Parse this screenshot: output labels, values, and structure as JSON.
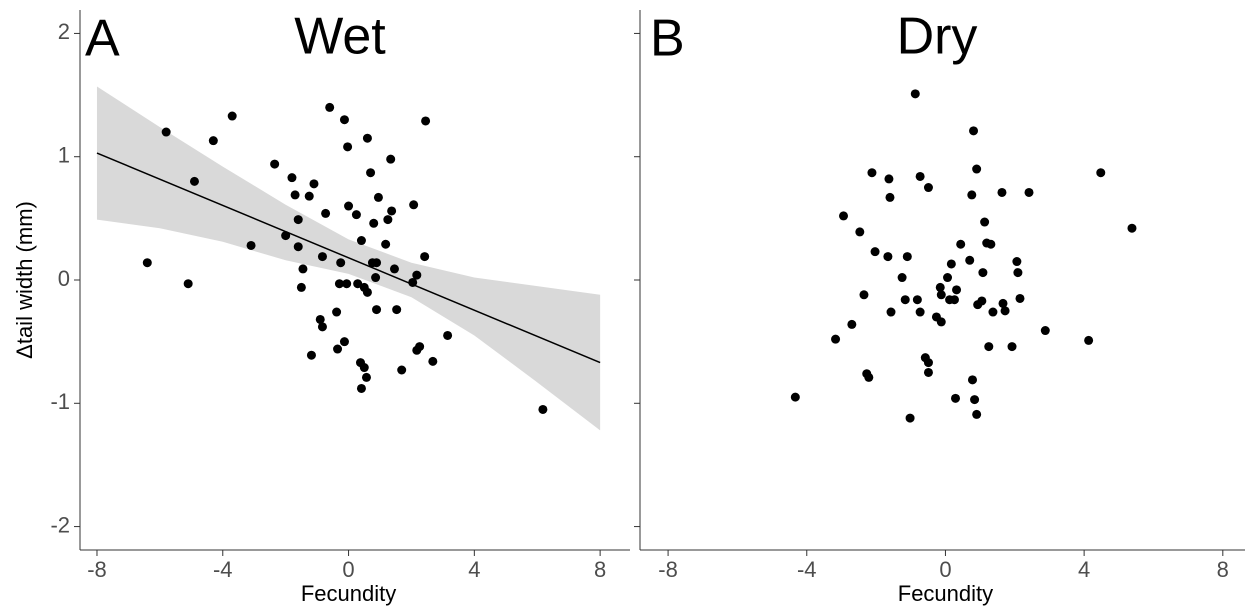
{
  "chart_data": [
    {
      "type": "scatter",
      "panel_label": "A",
      "title": "Wet",
      "x_label": "Fecundity",
      "y_label": "Δtail width (mm)",
      "xlim": [
        -8.54,
        8.95
      ],
      "ylim": [
        -2.19,
        2.19
      ],
      "xticks": [
        -8,
        -4,
        0,
        4,
        8
      ],
      "yticks": [
        -2,
        -1,
        0,
        1,
        2
      ],
      "grid": false,
      "color": "#000000",
      "x": [
        -5.8,
        -4.3,
        -3.7,
        -4.9,
        -6.4,
        -5.1,
        -3.1,
        -2.35,
        -1.8,
        -1.7,
        -1.6,
        -1.25,
        -1.1,
        -2.0,
        -1.6,
        -1.45,
        -1.5,
        -0.73,
        -0.6,
        -0.13,
        -0.03,
        0.6,
        0,
        0.25,
        1.34,
        2.45,
        0.95,
        0.8,
        1.37,
        1.25,
        1.18,
        2.07,
        0.41,
        0.7,
        -0.83,
        -0.25,
        -0.29,
        -0.06,
        0.29,
        0.5,
        0.6,
        0.89,
        0.76,
        0.86,
        1.46,
        2.42,
        2.17,
        2.04,
        0.89,
        1.53,
        -0.9,
        -0.83,
        -0.38,
        -0.13,
        -0.35,
        -1.18,
        0.38,
        0.5,
        0.57,
        0.41,
        1.69,
        2.17,
        2.26,
        2.68,
        3.15,
        6.18
      ],
      "values": [
        1.2,
        1.13,
        1.33,
        0.8,
        0.14,
        -0.03,
        0.28,
        0.94,
        0.83,
        0.69,
        0.49,
        0.68,
        0.78,
        0.36,
        0.27,
        0.09,
        -0.06,
        0.54,
        1.4,
        1.3,
        1.08,
        1.15,
        0.6,
        0.53,
        0.98,
        1.29,
        0.67,
        0.46,
        0.56,
        0.49,
        0.29,
        0.61,
        0.32,
        0.87,
        0.19,
        0.14,
        -0.03,
        -0.03,
        -0.03,
        -0.06,
        -0.1,
        0.14,
        0.14,
        0.02,
        0.09,
        0.19,
        0.04,
        -0.02,
        -0.24,
        -0.24,
        -0.32,
        -0.38,
        -0.26,
        -0.5,
        -0.56,
        -0.61,
        -0.67,
        -0.71,
        -0.79,
        -0.88,
        -0.73,
        -0.57,
        -0.54,
        -0.66,
        -0.45,
        -1.05
      ],
      "fit": {
        "color": "#000000",
        "x": [
          -8,
          8
        ],
        "values": [
          1.03,
          -0.67
        ]
      },
      "ci": {
        "color": "#d9d9d9",
        "x": [
          -8,
          -6,
          -4,
          -2,
          0,
          2,
          4,
          6,
          8
        ],
        "upper": [
          1.57,
          1.24,
          0.92,
          0.61,
          0.33,
          0.14,
          0.02,
          -0.05,
          -0.12
        ],
        "lower": [
          0.49,
          0.42,
          0.31,
          0.16,
          0.05,
          -0.14,
          -0.45,
          -0.83,
          -1.22
        ]
      }
    },
    {
      "type": "scatter",
      "panel_label": "B",
      "title": "Dry",
      "x_label": "Fecundity",
      "xlim": [
        -8.81,
        8.64
      ],
      "ylim": [
        -2.19,
        2.19
      ],
      "xticks": [
        -8,
        -4,
        0,
        4,
        8
      ],
      "grid": false,
      "color": "#000000",
      "x": [
        -0.87,
        0.81,
        0.9,
        -2.12,
        -1.63,
        -0.73,
        -0.49,
        -1.6,
        0.76,
        1.63,
        2.41,
        4.48,
        5.38,
        -2.94,
        -2.47,
        -2.03,
        -1.66,
        -1.1,
        -1.25,
        0.44,
        1.13,
        1.19,
        1.31,
        0.7,
        0.17,
        0.06,
        -0.15,
        0.32,
        0.12,
        0.26,
        -0.12,
        1.08,
        2.06,
        2.09,
        2.15,
        -2.35,
        -1.16,
        -0.81,
        -1.57,
        -0.73,
        -0.26,
        -0.12,
        1.05,
        0.93,
        1.37,
        1.72,
        1.66,
        -2.7,
        -3.17,
        1.25,
        1.92,
        2.88,
        4.13,
        -0.58,
        -0.49,
        -0.49,
        -2.27,
        -2.21,
        0.78,
        -4.33,
        0.29,
        0.84,
        0.9,
        -1.02
      ],
      "values": [
        1.51,
        1.21,
        0.9,
        0.87,
        0.82,
        0.84,
        0.75,
        0.67,
        0.69,
        0.71,
        0.71,
        0.87,
        0.42,
        0.52,
        0.39,
        0.23,
        0.19,
        0.19,
        0.02,
        0.29,
        0.47,
        0.3,
        0.29,
        0.16,
        0.13,
        0.02,
        -0.06,
        -0.08,
        -0.16,
        -0.16,
        -0.12,
        0.06,
        0.15,
        0.06,
        -0.15,
        -0.12,
        -0.16,
        -0.16,
        -0.26,
        -0.26,
        -0.3,
        -0.34,
        -0.17,
        -0.2,
        -0.26,
        -0.25,
        -0.19,
        -0.36,
        -0.48,
        -0.54,
        -0.54,
        -0.41,
        -0.49,
        -0.63,
        -0.67,
        -0.75,
        -0.76,
        -0.79,
        -0.81,
        -0.95,
        -0.96,
        -0.97,
        -1.09,
        -1.12
      ]
    }
  ]
}
